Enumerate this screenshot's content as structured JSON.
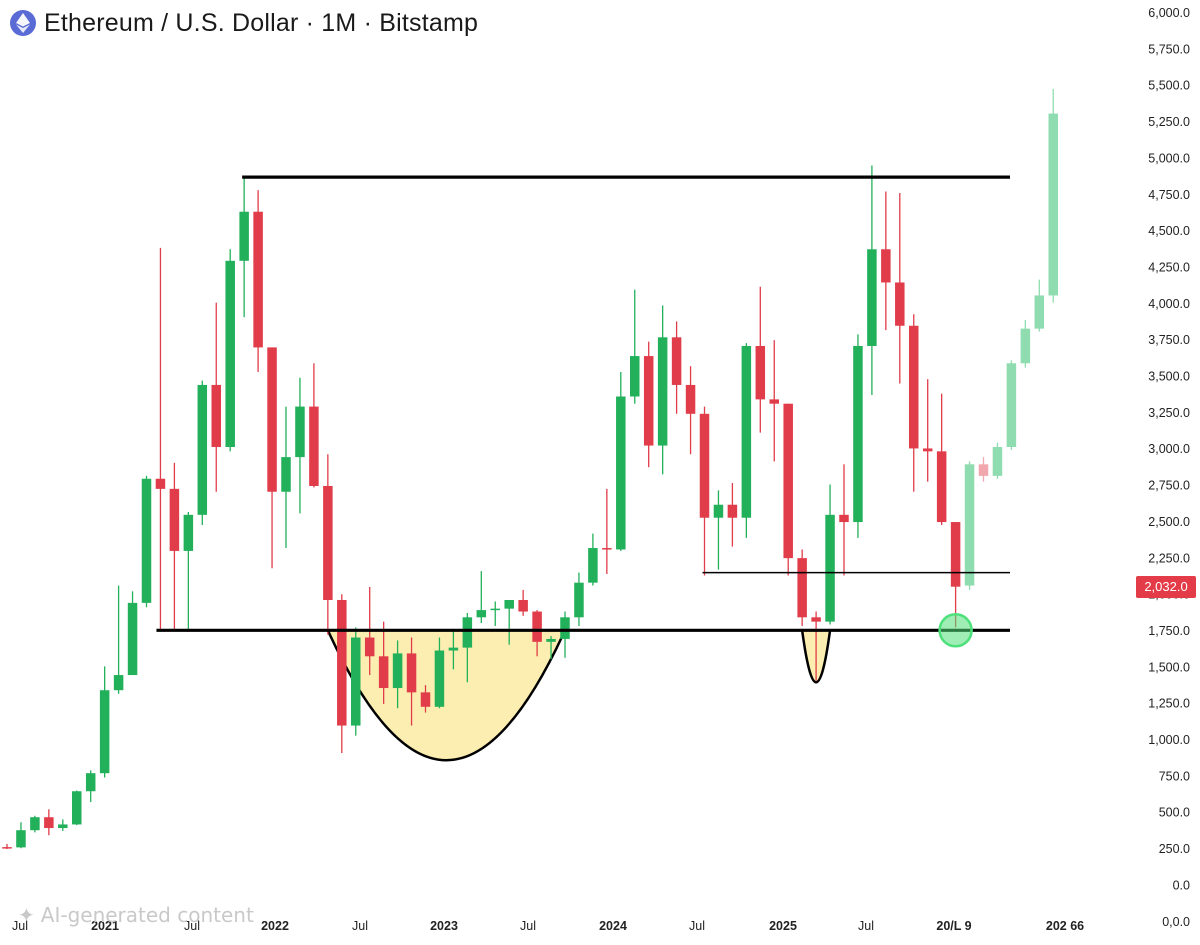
{
  "header": {
    "title": "Ethereum / U.S. Dollar · 1M · Bitstamp",
    "logo_icon": "ethereum-icon"
  },
  "watermark": {
    "text": "AI-generated content",
    "icon": "sparkle-icon"
  },
  "colors": {
    "up": "#22b15a",
    "down": "#e03c49",
    "projection_up": "#8fdcb0",
    "projection_down": "#f2a6ad",
    "cup_fill": "#fbeeb0",
    "line": "#000000",
    "marker": "#4ee07a",
    "axis_text": "#222222"
  },
  "chart_data": {
    "type": "candlestick",
    "title": "Ethereum / U.S. Dollar · 1M · Bitstamp",
    "y_axis": {
      "position": "right",
      "ylim": [
        0,
        6000
      ],
      "ticks": [
        "6,000.0",
        "5,750.0",
        "5,500.0",
        "5,250.0",
        "5,000.0",
        "4,750.0",
        "4,500.0",
        "4,250.0",
        "4,000.0",
        "3,750.0",
        "3,500.0",
        "3,250.0",
        "3,000.0",
        "2,750.0",
        "2,500.0",
        "2,250.0",
        "2,000.0",
        "1,750.0",
        "1,500.0",
        "1,250.0",
        "1,000.0",
        "750.0",
        "500.0",
        "250.0",
        "0.0",
        "0,0.0"
      ]
    },
    "x_axis": {
      "labels": [
        "Jul",
        "2021",
        "Jul",
        "2022",
        "Jul",
        "2023",
        "Jul",
        "2024",
        "Jul",
        "2025",
        "Jul",
        "20/L 9",
        "202 66"
      ]
    },
    "last_price": "2,032.0",
    "candles": [
      {
        "t": "2020-06",
        "o": 228,
        "h": 250,
        "l": 215,
        "c": 226
      },
      {
        "t": "2020-07",
        "o": 226,
        "h": 400,
        "l": 220,
        "c": 345
      },
      {
        "t": "2020-08",
        "o": 345,
        "h": 445,
        "l": 330,
        "c": 435
      },
      {
        "t": "2020-09",
        "o": 435,
        "h": 490,
        "l": 310,
        "c": 360
      },
      {
        "t": "2020-10",
        "o": 360,
        "h": 420,
        "l": 340,
        "c": 385
      },
      {
        "t": "2020-11",
        "o": 385,
        "h": 620,
        "l": 380,
        "c": 615
      },
      {
        "t": "2020-12",
        "o": 615,
        "h": 760,
        "l": 540,
        "c": 740
      },
      {
        "t": "2021-01",
        "o": 740,
        "h": 1480,
        "l": 710,
        "c": 1315
      },
      {
        "t": "2021-02",
        "o": 1315,
        "h": 2040,
        "l": 1290,
        "c": 1420
      },
      {
        "t": "2021-03",
        "o": 1420,
        "h": 2000,
        "l": 1420,
        "c": 1920
      },
      {
        "t": "2021-04",
        "o": 1920,
        "h": 2800,
        "l": 1890,
        "c": 2780
      },
      {
        "t": "2021-05",
        "o": 2780,
        "h": 4380,
        "l": 1730,
        "c": 2710
      },
      {
        "t": "2021-06",
        "o": 2710,
        "h": 2890,
        "l": 1730,
        "c": 2280
      },
      {
        "t": "2021-07",
        "o": 2280,
        "h": 2550,
        "l": 1720,
        "c": 2530
      },
      {
        "t": "2021-08",
        "o": 2530,
        "h": 3460,
        "l": 2460,
        "c": 3430
      },
      {
        "t": "2021-09",
        "o": 3430,
        "h": 4000,
        "l": 2690,
        "c": 3000
      },
      {
        "t": "2021-10",
        "o": 3000,
        "h": 4370,
        "l": 2970,
        "c": 4290
      },
      {
        "t": "2021-11",
        "o": 4290,
        "h": 4870,
        "l": 3900,
        "c": 4630
      },
      {
        "t": "2021-12",
        "o": 4630,
        "h": 4780,
        "l": 3520,
        "c": 3690
      },
      {
        "t": "2022-01",
        "o": 3690,
        "h": 3690,
        "l": 2160,
        "c": 2690
      },
      {
        "t": "2022-02",
        "o": 2690,
        "h": 3280,
        "l": 2300,
        "c": 2930
      },
      {
        "t": "2022-03",
        "o": 2930,
        "h": 3480,
        "l": 2540,
        "c": 3280
      },
      {
        "t": "2022-04",
        "o": 3280,
        "h": 3580,
        "l": 2720,
        "c": 2730
      },
      {
        "t": "2022-05",
        "o": 2730,
        "h": 2950,
        "l": 1700,
        "c": 1940
      },
      {
        "t": "2022-06",
        "o": 1940,
        "h": 1980,
        "l": 880,
        "c": 1070
      },
      {
        "t": "2022-07",
        "o": 1070,
        "h": 1750,
        "l": 1000,
        "c": 1680
      },
      {
        "t": "2022-08",
        "o": 1680,
        "h": 2030,
        "l": 1420,
        "c": 1550
      },
      {
        "t": "2022-09",
        "o": 1550,
        "h": 1790,
        "l": 1220,
        "c": 1330
      },
      {
        "t": "2022-10",
        "o": 1330,
        "h": 1660,
        "l": 1190,
        "c": 1570
      },
      {
        "t": "2022-11",
        "o": 1570,
        "h": 1680,
        "l": 1070,
        "c": 1300
      },
      {
        "t": "2022-12",
        "o": 1300,
        "h": 1350,
        "l": 1160,
        "c": 1200
      },
      {
        "t": "2023-01",
        "o": 1200,
        "h": 1680,
        "l": 1190,
        "c": 1590
      },
      {
        "t": "2023-02",
        "o": 1590,
        "h": 1740,
        "l": 1460,
        "c": 1610
      },
      {
        "t": "2023-03",
        "o": 1610,
        "h": 1850,
        "l": 1370,
        "c": 1820
      },
      {
        "t": "2023-04",
        "o": 1820,
        "h": 2140,
        "l": 1780,
        "c": 1870
      },
      {
        "t": "2023-05",
        "o": 1870,
        "h": 1930,
        "l": 1760,
        "c": 1880
      },
      {
        "t": "2023-06",
        "o": 1880,
        "h": 1930,
        "l": 1630,
        "c": 1940
      },
      {
        "t": "2023-07",
        "o": 1940,
        "h": 2010,
        "l": 1830,
        "c": 1860
      },
      {
        "t": "2023-08",
        "o": 1860,
        "h": 1870,
        "l": 1550,
        "c": 1650
      },
      {
        "t": "2023-09",
        "o": 1650,
        "h": 1690,
        "l": 1530,
        "c": 1670
      },
      {
        "t": "2023-10",
        "o": 1670,
        "h": 1860,
        "l": 1540,
        "c": 1820
      },
      {
        "t": "2023-11",
        "o": 1820,
        "h": 2130,
        "l": 1760,
        "c": 2060
      },
      {
        "t": "2023-12",
        "o": 2060,
        "h": 2400,
        "l": 2040,
        "c": 2300
      },
      {
        "t": "2024-01",
        "o": 2300,
        "h": 2710,
        "l": 2120,
        "c": 2290
      },
      {
        "t": "2024-02",
        "o": 2290,
        "h": 3520,
        "l": 2280,
        "c": 3350
      },
      {
        "t": "2024-03",
        "o": 3350,
        "h": 4090,
        "l": 3300,
        "c": 3630
      },
      {
        "t": "2024-04",
        "o": 3630,
        "h": 3730,
        "l": 2860,
        "c": 3010
      },
      {
        "t": "2024-05",
        "o": 3010,
        "h": 3980,
        "l": 2810,
        "c": 3760
      },
      {
        "t": "2024-06",
        "o": 3760,
        "h": 3870,
        "l": 3230,
        "c": 3430
      },
      {
        "t": "2024-07",
        "o": 3430,
        "h": 3560,
        "l": 2950,
        "c": 3230
      },
      {
        "t": "2024-08",
        "o": 3230,
        "h": 3280,
        "l": 2110,
        "c": 2510
      },
      {
        "t": "2024-09",
        "o": 2510,
        "h": 2700,
        "l": 2150,
        "c": 2600
      },
      {
        "t": "2024-10",
        "o": 2600,
        "h": 2750,
        "l": 2310,
        "c": 2510
      },
      {
        "t": "2024-11",
        "o": 2510,
        "h": 3720,
        "l": 2370,
        "c": 3700
      },
      {
        "t": "2024-12",
        "o": 3700,
        "h": 4110,
        "l": 3100,
        "c": 3330
      },
      {
        "t": "2025-01",
        "o": 3330,
        "h": 3740,
        "l": 2900,
        "c": 3300
      },
      {
        "t": "2025-02",
        "o": 3300,
        "h": 3300,
        "l": 2110,
        "c": 2230
      },
      {
        "t": "2025-03",
        "o": 2230,
        "h": 2290,
        "l": 1760,
        "c": 1820
      },
      {
        "t": "2025-04",
        "o": 1820,
        "h": 1860,
        "l": 1380,
        "c": 1790
      },
      {
        "t": "2025-05",
        "o": 1790,
        "h": 2740,
        "l": 1770,
        "c": 2530
      },
      {
        "t": "2025-06",
        "o": 2530,
        "h": 2880,
        "l": 2110,
        "c": 2480
      },
      {
        "t": "2025-07",
        "o": 2480,
        "h": 3780,
        "l": 2370,
        "c": 3700
      },
      {
        "t": "2025-08",
        "o": 3700,
        "h": 4950,
        "l": 3360,
        "c": 4370
      },
      {
        "t": "2025-09",
        "o": 4370,
        "h": 4770,
        "l": 3810,
        "c": 4140
      },
      {
        "t": "2025-10",
        "o": 4140,
        "h": 4760,
        "l": 3440,
        "c": 3840
      },
      {
        "t": "2025-11",
        "o": 3840,
        "h": 3920,
        "l": 2690,
        "c": 2990
      },
      {
        "t": "2025-12",
        "o": 2990,
        "h": 3470,
        "l": 2760,
        "c": 2970
      },
      {
        "t": "2026-01",
        "o": 2970,
        "h": 3370,
        "l": 2460,
        "c": 2480
      },
      {
        "t": "2026-02",
        "o": 2480,
        "h": 2480,
        "l": 1750,
        "c": 2032
      }
    ],
    "projection": [
      {
        "o": 2040,
        "h": 2900,
        "l": 2010,
        "c": 2880
      },
      {
        "o": 2880,
        "h": 2930,
        "l": 2760,
        "c": 2800
      },
      {
        "o": 2800,
        "h": 3030,
        "l": 2780,
        "c": 3000
      },
      {
        "o": 3000,
        "h": 3600,
        "l": 2980,
        "c": 3580
      },
      {
        "o": 3580,
        "h": 3880,
        "l": 3550,
        "c": 3820
      },
      {
        "o": 3820,
        "h": 4160,
        "l": 3800,
        "c": 4050
      },
      {
        "o": 4050,
        "h": 5480,
        "l": 4000,
        "c": 5310
      }
    ],
    "levels": [
      {
        "name": "all-time-high-resistance",
        "price": 4870
      },
      {
        "name": "neckline-support",
        "price": 1730
      },
      {
        "name": "intermediate-support",
        "price": 2130
      }
    ],
    "patterns": [
      {
        "name": "cup",
        "from": "2022-05",
        "to": "2023-10",
        "bottom": 830
      },
      {
        "name": "handle",
        "from": "2025-03",
        "to": "2025-05",
        "bottom": 1370
      }
    ],
    "marker": {
      "at": "2026-02",
      "price": 1730
    }
  }
}
